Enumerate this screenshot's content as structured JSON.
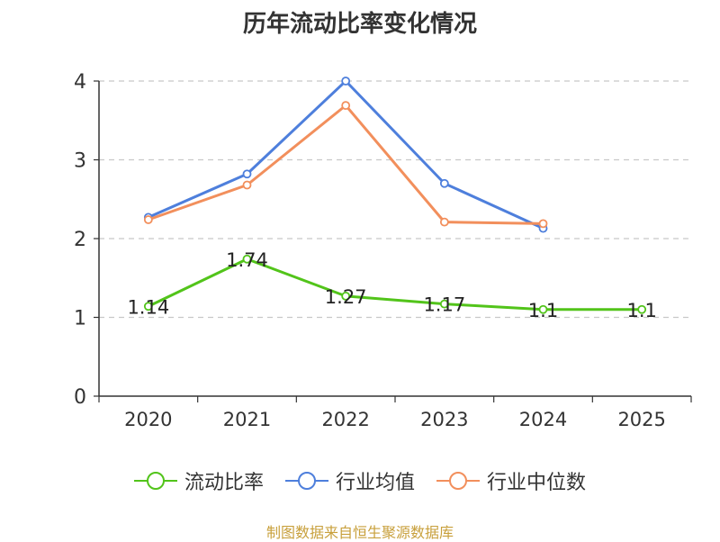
{
  "chart_data": {
    "type": "line",
    "title": "历年流动比率变化情况",
    "categories": [
      "2020",
      "2021",
      "2022",
      "2023",
      "2024",
      "2025"
    ],
    "ylim": [
      0,
      4
    ],
    "yticks": [
      0,
      1,
      2,
      3,
      4
    ],
    "grid": true,
    "series": [
      {
        "name": "流动比率",
        "color": "#52c41a",
        "labels": true,
        "values": [
          1.14,
          1.74,
          1.27,
          1.17,
          1.1,
          1.1
        ],
        "label_text": [
          "1.14",
          "1.74",
          "1.27",
          "1.17",
          "1.1",
          "1.1"
        ]
      },
      {
        "name": "行业均值",
        "color": "#4e7fdc",
        "labels": false,
        "values": [
          2.27,
          2.82,
          4.0,
          2.7,
          2.13,
          null
        ]
      },
      {
        "name": "行业中位数",
        "color": "#f28f5c",
        "labels": false,
        "values": [
          2.24,
          2.68,
          3.69,
          2.21,
          2.19,
          null
        ]
      }
    ],
    "legend_position": "bottom-center",
    "source": "制图数据来自恒生聚源数据库"
  }
}
